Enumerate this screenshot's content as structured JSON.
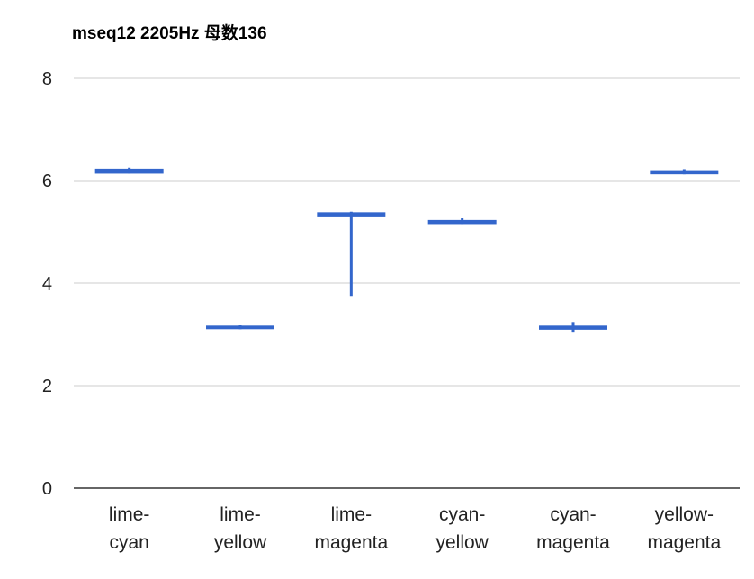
{
  "chart_data": {
    "type": "candlestick",
    "title": "mseq12 2205Hz 母数136",
    "xlabel": "",
    "ylabel": "",
    "ylim": [
      0,
      8
    ],
    "yticks": [
      0,
      2,
      4,
      6,
      8
    ],
    "grid": true,
    "legend": "none",
    "categories": [
      [
        "lime-",
        "cyan"
      ],
      [
        "lime-",
        "yellow"
      ],
      [
        "lime-",
        "magenta"
      ],
      [
        "cyan-",
        "yellow"
      ],
      [
        "cyan-",
        "magenta"
      ],
      [
        "yellow-",
        "magenta"
      ]
    ],
    "series": [
      {
        "color": "#3366cc",
        "points": [
          {
            "low": 6.15,
            "open": 6.15,
            "close": 6.23,
            "high": 6.25
          },
          {
            "low": 3.1,
            "open": 3.1,
            "close": 3.17,
            "high": 3.19
          },
          {
            "low": 3.75,
            "open": 5.3,
            "close": 5.38,
            "high": 5.39
          },
          {
            "low": 5.15,
            "open": 5.15,
            "close": 5.23,
            "high": 5.27
          },
          {
            "low": 3.05,
            "open": 3.09,
            "close": 3.17,
            "high": 3.24
          },
          {
            "low": 6.12,
            "open": 6.12,
            "close": 6.2,
            "high": 6.22
          }
        ]
      }
    ]
  },
  "colors": {
    "series": "#3366cc",
    "grid": "#cccccc",
    "axis": "#333333",
    "text": "#222222"
  }
}
